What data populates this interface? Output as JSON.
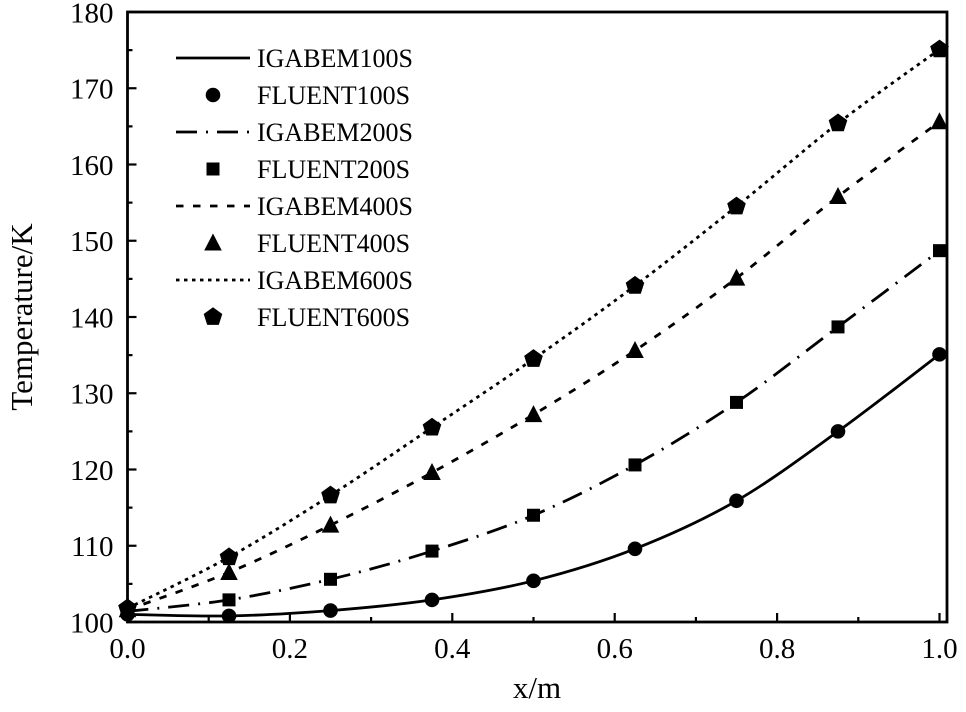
{
  "figure": {
    "background": "#ffffff",
    "ink_color": "#000000"
  },
  "chart_data": {
    "type": "line",
    "title": "",
    "xlabel": "x/m",
    "ylabel": "Temperature/K",
    "xlim": [
      0.0,
      1.0
    ],
    "ylim": [
      100,
      180
    ],
    "grid": false,
    "legend_position": "top-left-inside",
    "x_major_ticks": [
      0.0,
      0.2,
      0.4,
      0.6,
      0.8,
      1.0
    ],
    "x_tick_labels": [
      "0.0",
      "0.2",
      "0.4",
      "0.6",
      "0.8",
      "1.0"
    ],
    "x_minor_step": 0.1,
    "y_major_ticks": [
      100,
      110,
      120,
      130,
      140,
      150,
      160,
      170,
      180
    ],
    "y_tick_labels": [
      "100",
      "110",
      "120",
      "130",
      "140",
      "150",
      "160",
      "170",
      "180"
    ],
    "y_minor_step": 5,
    "x": [
      0.0,
      0.125,
      0.25,
      0.375,
      0.5,
      0.625,
      0.75,
      0.875,
      1.0
    ],
    "series": [
      {
        "name": "IGABEM100S",
        "style": "line",
        "linestyle": "solid",
        "marker": null,
        "values": [
          101.0,
          100.8,
          101.5,
          102.9,
          105.4,
          109.6,
          115.9,
          125.0,
          135.1
        ]
      },
      {
        "name": "FLUENT100S",
        "style": "marker",
        "linestyle": null,
        "marker": "circle",
        "values": [
          101.0,
          100.8,
          101.5,
          102.9,
          105.4,
          109.6,
          115.9,
          125.0,
          135.1
        ]
      },
      {
        "name": "IGABEM200S",
        "style": "line",
        "linestyle": "dash",
        "marker": null,
        "values": [
          101.4,
          102.9,
          105.6,
          109.3,
          114.0,
          120.6,
          128.8,
          138.7,
          148.7
        ]
      },
      {
        "name": "FLUENT200S",
        "style": "marker",
        "linestyle": null,
        "marker": "square",
        "values": [
          101.4,
          102.9,
          105.6,
          109.3,
          114.0,
          120.6,
          128.8,
          138.7,
          148.7
        ]
      },
      {
        "name": "IGABEM400S",
        "style": "line",
        "linestyle": "shortdash",
        "marker": null,
        "values": [
          101.6,
          106.5,
          112.7,
          119.6,
          127.2,
          135.6,
          145.1,
          155.8,
          165.6
        ]
      },
      {
        "name": "FLUENT400S",
        "style": "marker",
        "linestyle": null,
        "marker": "triangle",
        "values": [
          101.6,
          106.5,
          112.7,
          119.6,
          127.2,
          135.6,
          145.1,
          155.8,
          165.6
        ]
      },
      {
        "name": "IGABEM600S",
        "style": "line",
        "linestyle": "dot",
        "marker": null,
        "values": [
          101.8,
          108.5,
          116.6,
          125.5,
          134.5,
          144.1,
          154.5,
          165.4,
          175.1
        ]
      },
      {
        "name": "FLUENT600S",
        "style": "marker",
        "linestyle": null,
        "marker": "pentagon",
        "values": [
          101.8,
          108.5,
          116.6,
          125.5,
          134.5,
          144.1,
          154.5,
          165.4,
          175.1
        ]
      }
    ],
    "legend": [
      "IGABEM100S",
      "FLUENT100S",
      "IGABEM200S",
      "FLUENT200S",
      "IGABEM400S",
      "FLUENT400S",
      "IGABEM600S",
      "FLUENT600S"
    ]
  }
}
